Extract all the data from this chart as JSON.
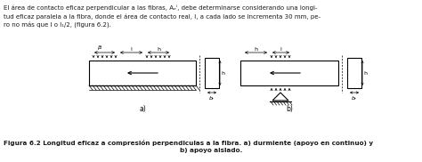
{
  "paragraph_line1": "El área de contacto eficaz perpendicular a las fibras, Aₑⁱ, debe determinarse considerando una longi-",
  "paragraph_line2": "tud eficaz paralela a la fibra, donde el área de contacto real, l, a cada lado se incrementa 30 mm, pe-",
  "paragraph_line3": "ro no más que l o l₁/2, (figura 6.2).",
  "caption_line1": "Figura 6.2 Longitud eficaz a compresión perpendiculas a la fibra. a) durmiente (apoyo en continuo) y",
  "caption_line2": "b) apoyo aislado.",
  "label_a": "a)",
  "label_b": "b)",
  "background": "#ffffff",
  "text_color": "#1a1a1a"
}
